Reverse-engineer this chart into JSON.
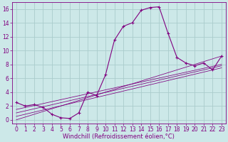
{
  "xlabel": "Windchill (Refroidissement éolien,°C)",
  "background_color": "#cce8e8",
  "line_color": "#800080",
  "grid_color": "#aacccc",
  "series": [
    [
      0,
      2.5
    ],
    [
      1,
      2.0
    ],
    [
      2,
      2.2
    ],
    [
      3,
      1.8
    ],
    [
      4,
      0.8
    ],
    [
      5,
      0.3
    ],
    [
      6,
      0.2
    ],
    [
      7,
      1.0
    ],
    [
      8,
      4.0
    ],
    [
      9,
      3.5
    ],
    [
      10,
      6.5
    ],
    [
      11,
      11.5
    ],
    [
      12,
      13.5
    ],
    [
      13,
      14.0
    ],
    [
      14,
      15.8
    ],
    [
      15,
      16.2
    ],
    [
      16,
      16.3
    ],
    [
      17,
      12.5
    ],
    [
      18,
      9.0
    ],
    [
      19,
      8.2
    ],
    [
      20,
      7.8
    ],
    [
      21,
      8.2
    ],
    [
      22,
      7.2
    ],
    [
      23,
      9.2
    ]
  ],
  "diag_lines": [
    {
      "points": [
        [
          0,
          0.0
        ],
        [
          23,
          9.2
        ]
      ],
      "has_markers": false
    },
    {
      "points": [
        [
          0,
          0.5
        ],
        [
          23,
          7.5
        ]
      ],
      "has_markers": false
    },
    {
      "points": [
        [
          0,
          1.0
        ],
        [
          23,
          7.8
        ]
      ],
      "has_markers": false
    },
    {
      "points": [
        [
          0,
          1.5
        ],
        [
          23,
          8.0
        ]
      ],
      "has_markers": false
    }
  ],
  "ylim": [
    -0.5,
    17.0
  ],
  "xlim": [
    -0.5,
    23.5
  ],
  "yticks": [
    0,
    2,
    4,
    6,
    8,
    10,
    12,
    14,
    16
  ],
  "xticks": [
    0,
    1,
    2,
    3,
    4,
    5,
    6,
    7,
    8,
    9,
    10,
    11,
    12,
    13,
    14,
    15,
    16,
    17,
    18,
    19,
    20,
    21,
    22,
    23
  ],
  "tick_fontsize": 5.5,
  "xlabel_fontsize": 6.0,
  "line_width": 0.8,
  "marker_size": 3.0
}
